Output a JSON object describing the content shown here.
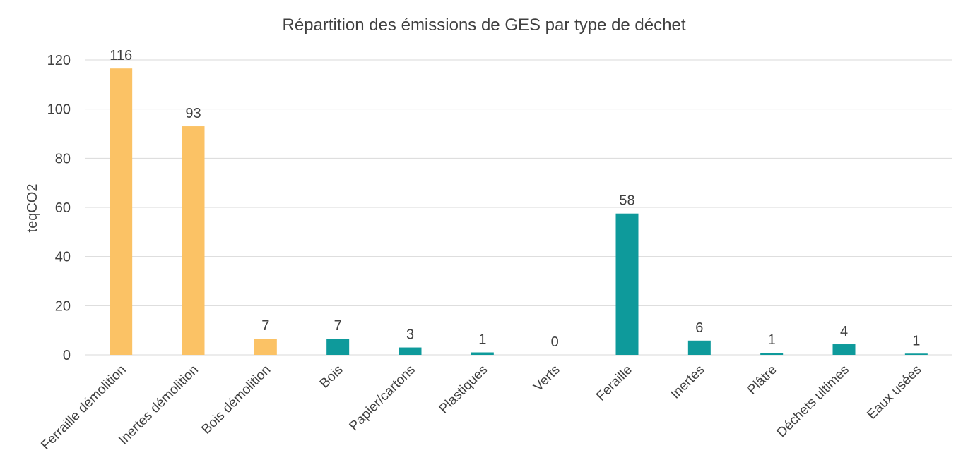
{
  "chart_data": {
    "type": "bar",
    "title": "Répartition des émissions de GES par type de déchet",
    "xlabel": "",
    "ylabel": "teqCO2",
    "ylim": [
      0,
      120
    ],
    "yticks": [
      0,
      20,
      40,
      60,
      80,
      100,
      120
    ],
    "grid": true,
    "legend": "none",
    "categories": [
      "Ferraille démolition",
      "Inertes démolition",
      "Bois démolition",
      "Bois",
      "Papier/cartons",
      "Plastiques",
      "Verts",
      "Feraille",
      "Inertes",
      "Plâtre",
      "Déchets ultimes",
      "Eaux usées"
    ],
    "values": [
      116.5,
      93,
      6.6,
      6.6,
      3,
      1,
      0,
      57.5,
      5.8,
      0.8,
      4.3,
      0.5
    ],
    "data_labels": [
      "116",
      "93",
      "7",
      "7",
      "3",
      "1",
      "0",
      "58",
      "6",
      "1",
      "4",
      "1"
    ],
    "bar_colors": [
      "#FBC265",
      "#FBC265",
      "#FBC265",
      "#0E9A9B",
      "#0E9A9B",
      "#0E9A9B",
      "#0E9A9B",
      "#0E9A9B",
      "#0E9A9B",
      "#0E9A9B",
      "#0E9A9B",
      "#0E9A9B"
    ],
    "gridline_color": "#d9d9d9"
  }
}
